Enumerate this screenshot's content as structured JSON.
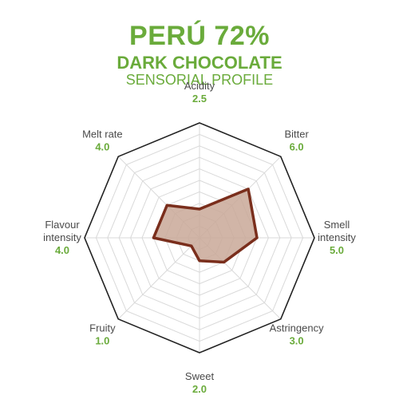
{
  "header": {
    "title": "PERÚ 72%",
    "subtitle": "DARK CHOCOLATE",
    "subtitle2": "SENSORIAL PROFILE"
  },
  "colors": {
    "accent": "#6aab3b",
    "label": "#4a4a4a",
    "outline": "#222222",
    "grid": "#d9d9d9",
    "fill": "#c9a898",
    "stroke": "#7a2e1c"
  },
  "chart_data": {
    "type": "radar",
    "title": "PERÚ 72%",
    "subtitle": "DARK CHOCOLATE SENSORIAL PROFILE",
    "scale_max": 10,
    "grid_rings": 10,
    "axes": [
      {
        "lines": [
          "Acidity"
        ],
        "value": 2.5,
        "value_label": "2.5"
      },
      {
        "lines": [
          "Bitter"
        ],
        "value": 6.0,
        "value_label": "6.0"
      },
      {
        "lines": [
          "Smell",
          "intensity"
        ],
        "value": 5.0,
        "value_label": "5.0"
      },
      {
        "lines": [
          "Astringency"
        ],
        "value": 3.0,
        "value_label": "3.0"
      },
      {
        "lines": [
          "Sweet"
        ],
        "value": 2.0,
        "value_label": "2.0"
      },
      {
        "lines": [
          "Fruity"
        ],
        "value": 1.0,
        "value_label": "1.0"
      },
      {
        "lines": [
          "Flavour",
          "intensity"
        ],
        "value": 4.0,
        "value_label": "4.0"
      },
      {
        "lines": [
          "Melt rate"
        ],
        "value": 4.0,
        "value_label": "4.0"
      }
    ]
  }
}
